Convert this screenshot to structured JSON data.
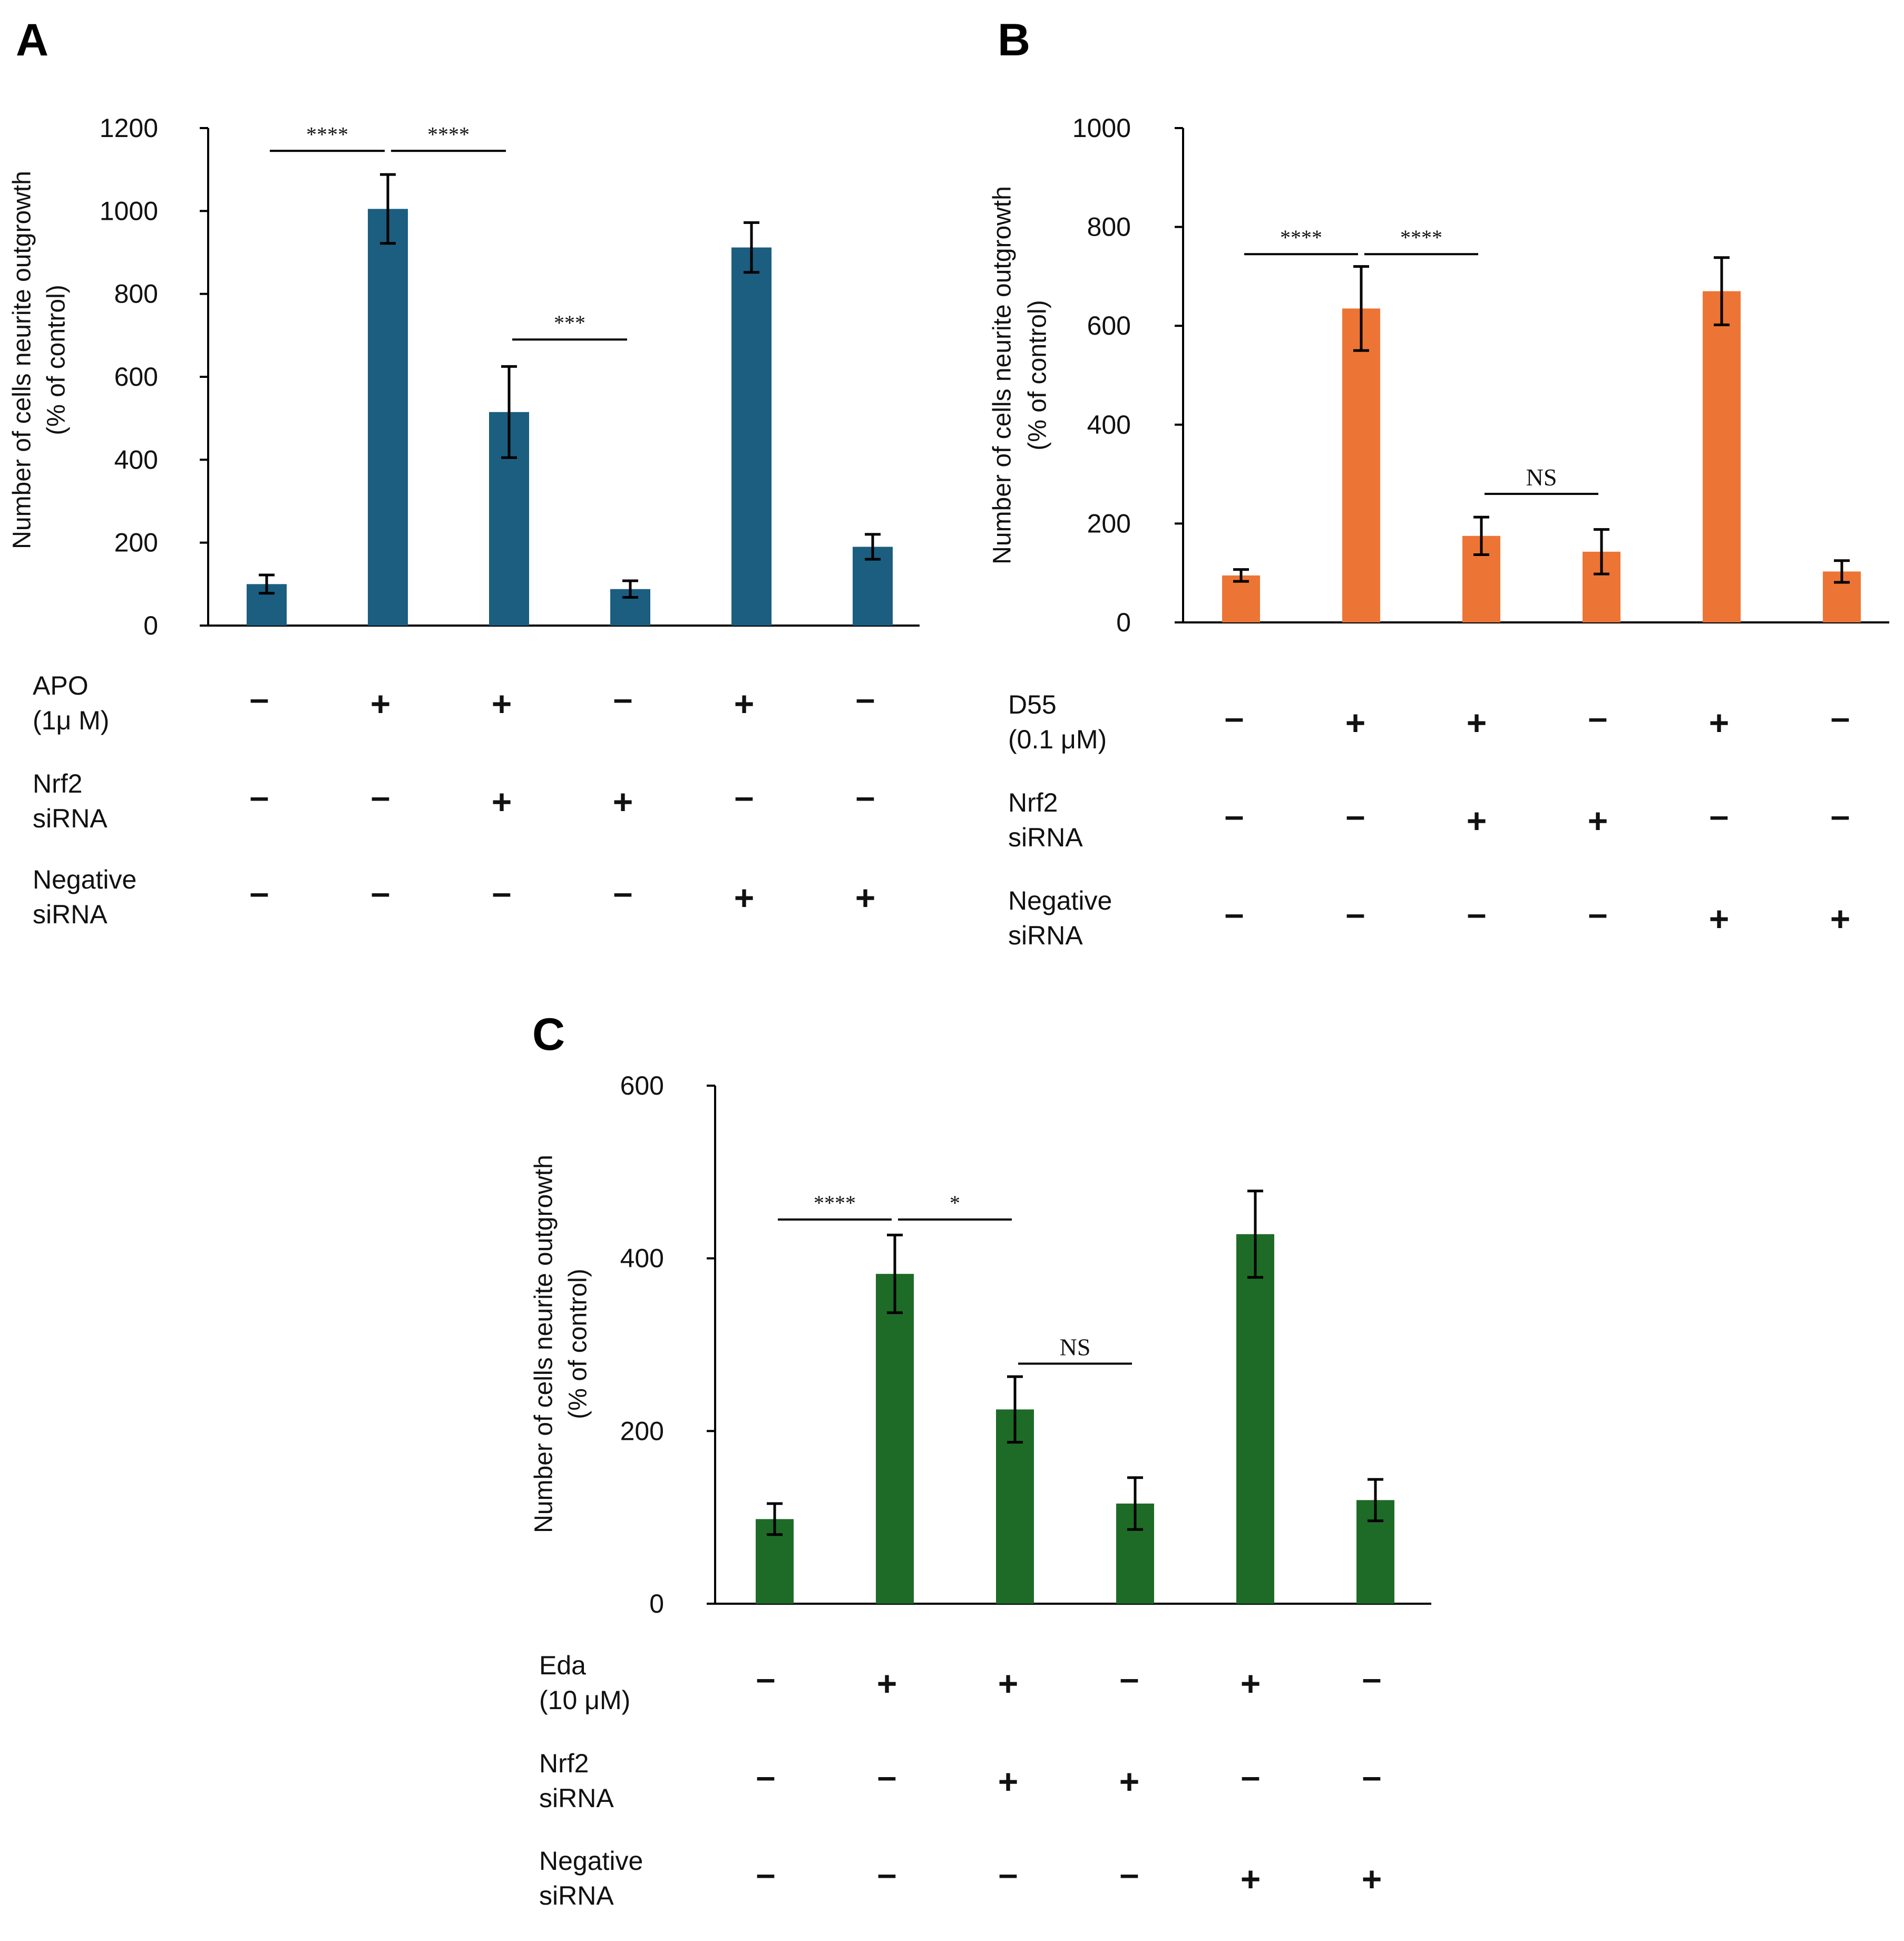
{
  "chart_data": [
    {
      "type": "bar",
      "panel": "A",
      "color": "#1b5e80",
      "ylabel": "Number of cells neurite outgrowth",
      "ylabel2": "(% of control)",
      "ylim": [
        0,
        1200
      ],
      "yticks": [
        0,
        200,
        400,
        600,
        800,
        1000,
        1200
      ],
      "ytick_labels": [
        "0",
        "200",
        "400",
        "600",
        "800",
        "1000",
        "1200"
      ],
      "values": [
        100,
        1005,
        515,
        88,
        912,
        190
      ],
      "errors": [
        22,
        83,
        110,
        20,
        60,
        30
      ],
      "conditions": [
        {
          "label": [
            "APO",
            "(1μ M)"
          ],
          "signs": [
            "–",
            "+",
            "+",
            "–",
            "+",
            "–"
          ]
        },
        {
          "label": [
            "Nrf2",
            "siRNA"
          ],
          "signs": [
            "–",
            "–",
            "+",
            "+",
            "–",
            "–"
          ]
        },
        {
          "label": [
            "Negative",
            "siRNA"
          ],
          "signs": [
            "–",
            "–",
            "–",
            "–",
            "+",
            "+"
          ]
        }
      ],
      "significance": [
        {
          "from": 0,
          "to": 1,
          "y": 1145,
          "label": "****"
        },
        {
          "from": 1,
          "to": 2,
          "y": 1145,
          "label": "****"
        },
        {
          "from": 2,
          "to": 3,
          "y": 690,
          "label": "***"
        }
      ]
    },
    {
      "type": "bar",
      "panel": "B",
      "color": "#ec7535",
      "ylabel": "Number of cells neurite outgrowth",
      "ylabel2": "(% of control)",
      "ylim": [
        0,
        1000
      ],
      "yticks": [
        0,
        200,
        400,
        600,
        800,
        1000
      ],
      "ytick_labels": [
        "0",
        "200",
        "400",
        "600",
        "800",
        "1000"
      ],
      "values": [
        95,
        635,
        175,
        143,
        670,
        103
      ],
      "errors": [
        12,
        85,
        38,
        45,
        68,
        22
      ],
      "conditions": [
        {
          "label": [
            "D55",
            "(0.1 μM)"
          ],
          "signs": [
            "–",
            "+",
            "+",
            "–",
            "+",
            "–"
          ]
        },
        {
          "label": [
            "Nrf2",
            "siRNA"
          ],
          "signs": [
            "–",
            "–",
            "+",
            "+",
            "–",
            "–"
          ]
        },
        {
          "label": [
            "Negative",
            "siRNA"
          ],
          "signs": [
            "–",
            "–",
            "–",
            "–",
            "+",
            "+"
          ]
        }
      ],
      "significance": [
        {
          "from": 0,
          "to": 1,
          "y": 745,
          "label": "****"
        },
        {
          "from": 1,
          "to": 2,
          "y": 745,
          "label": "****"
        },
        {
          "from": 2,
          "to": 3,
          "y": 260,
          "label": "NS"
        }
      ]
    },
    {
      "type": "bar",
      "panel": "C",
      "color": "#1e6b27",
      "ylabel": "Number of cells neurite outgrowth",
      "ylabel2": "(% of control)",
      "ylim": [
        0,
        600
      ],
      "yticks": [
        0,
        200,
        400,
        600
      ],
      "ytick_labels": [
        "0",
        "200",
        "400",
        "600"
      ],
      "values": [
        98,
        382,
        225,
        116,
        428,
        120
      ],
      "errors": [
        18,
        45,
        38,
        30,
        50,
        24
      ],
      "conditions": [
        {
          "label": [
            "Eda",
            "(10 μM)"
          ],
          "signs": [
            "–",
            "+",
            "+",
            "–",
            "+",
            "–"
          ]
        },
        {
          "label": [
            "Nrf2",
            "siRNA"
          ],
          "signs": [
            "–",
            "–",
            "+",
            "+",
            "–",
            "–"
          ]
        },
        {
          "label": [
            "Negative",
            "siRNA"
          ],
          "signs": [
            "–",
            "–",
            "–",
            "–",
            "+",
            "+"
          ]
        }
      ],
      "significance": [
        {
          "from": 0,
          "to": 1,
          "y": 445,
          "label": "****"
        },
        {
          "from": 1,
          "to": 2,
          "y": 445,
          "label": "*"
        },
        {
          "from": 2,
          "to": 3,
          "y": 278,
          "label": "NS"
        }
      ]
    }
  ]
}
